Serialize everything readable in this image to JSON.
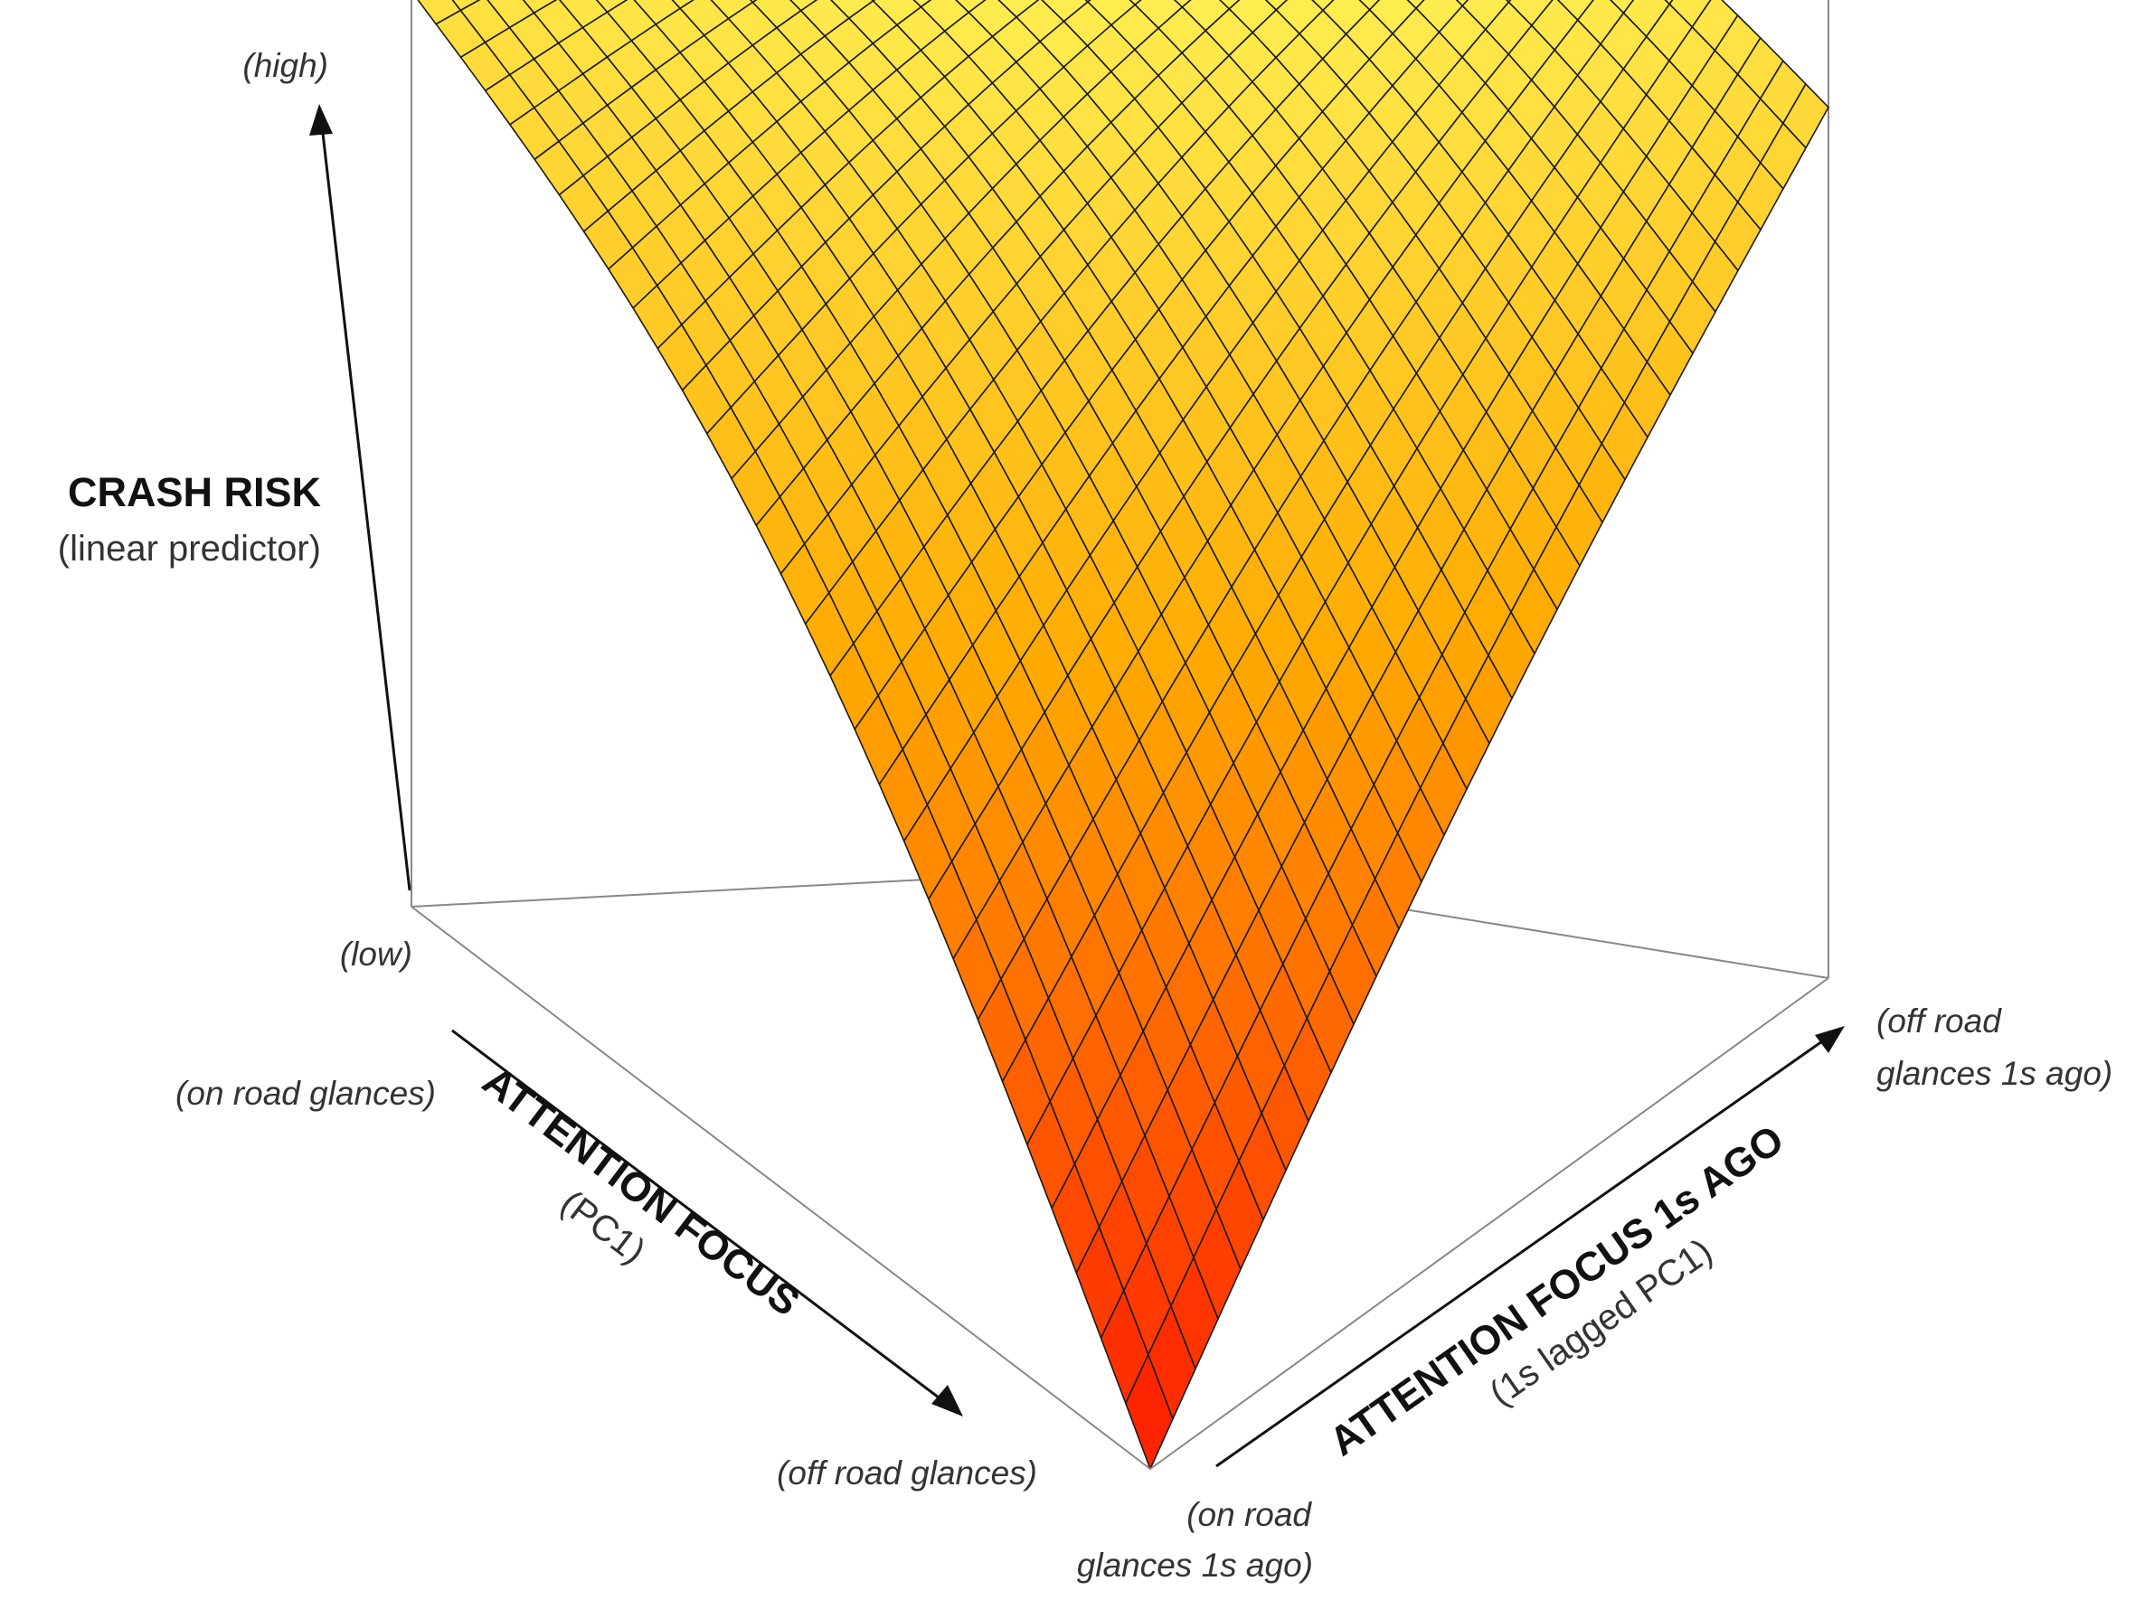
{
  "chart_data": {
    "type": "surface",
    "z_axis": {
      "title": "CRASH RISK",
      "subtitle": "(linear predictor)",
      "high_label": "(high)",
      "low_label": "(low)"
    },
    "x_axis": {
      "title": "ATTENTION FOCUS",
      "subtitle": "(PC1)",
      "start_label": "(on road glances)",
      "end_label": "(off road glances)"
    },
    "y_axis": {
      "title": "ATTENTION FOCUS 1s AGO",
      "subtitle": "(1s lagged PC1)",
      "start_label_line1": "(on road",
      "start_label_line2": "glances 1s ago)",
      "end_label_line1": "(off road",
      "end_label_line2": "glances 1s ago)"
    },
    "grid_size": 30,
    "surface_description": "crash risk surface over (attention focus, attention focus 1s ago)",
    "corner_heights": {
      "off_road_now__on_road_1s_ago": 0.0,
      "on_road_now__on_road_1s_ago": 0.82,
      "on_road_now__off_road_1s_ago": 1.0,
      "off_road_now__off_road_1s_ago": 0.78
    },
    "colors": {
      "low": "#ff1a00",
      "mid": "#ffaa00",
      "high": "#ffff66",
      "mesh": "#1a1a1a",
      "box": "#888888"
    }
  }
}
